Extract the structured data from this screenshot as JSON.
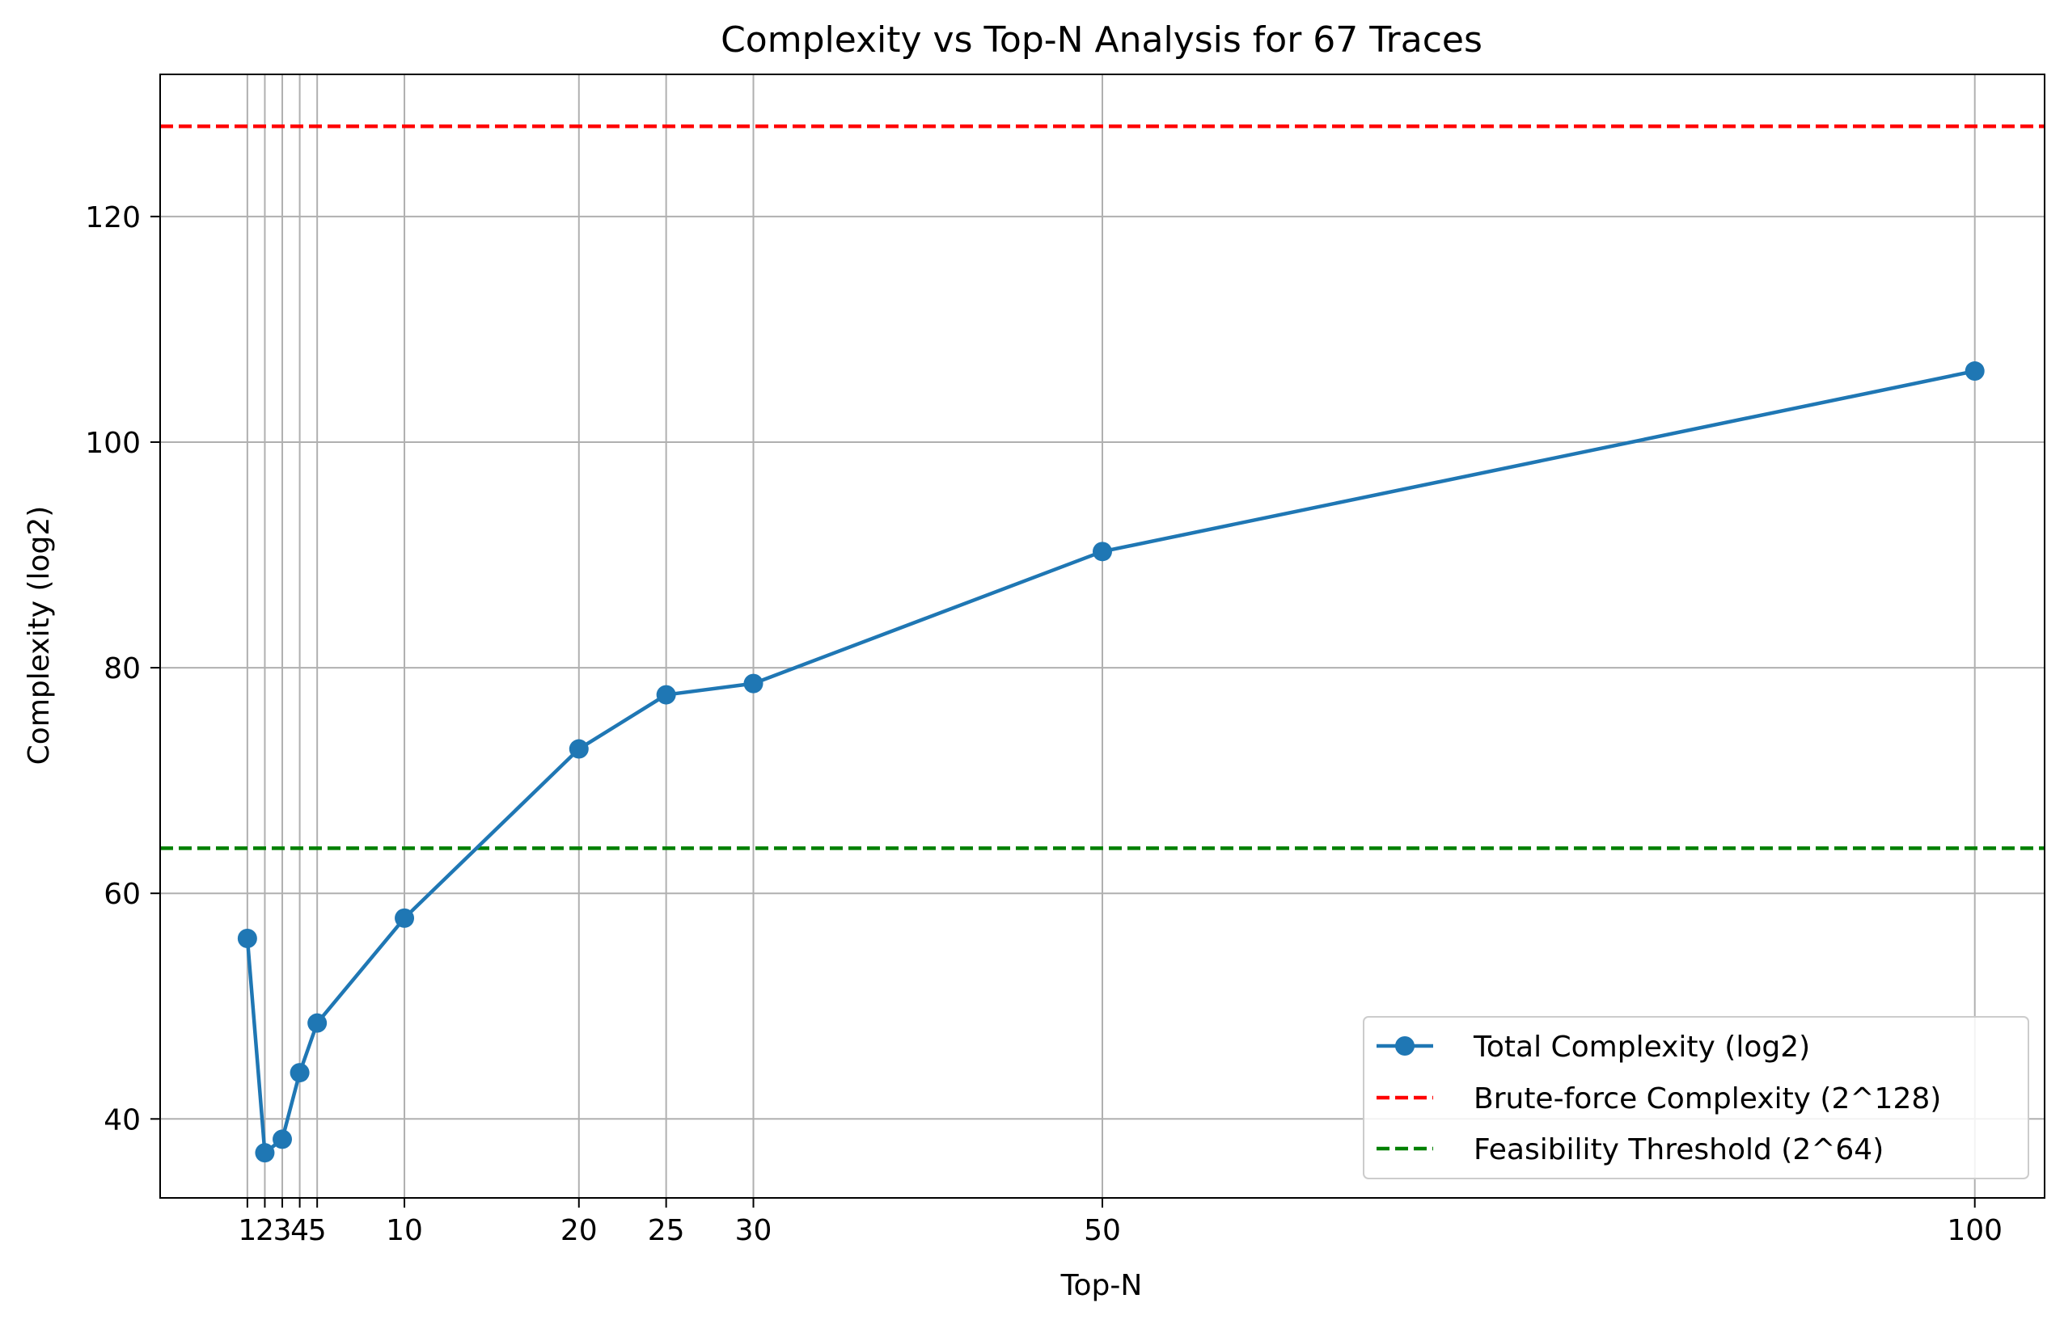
{
  "chart_data": {
    "type": "line",
    "title": "Complexity vs Top-N Analysis for 67 Traces",
    "xlabel": "Top-N",
    "ylabel": "Complexity (log2)",
    "x_ticks": [
      1,
      2,
      3,
      4,
      5,
      10,
      20,
      25,
      30,
      50,
      100
    ],
    "y_ticks": [
      40,
      60,
      80,
      100,
      120
    ],
    "xlim": [
      -4,
      104
    ],
    "ylim": [
      33,
      132.6
    ],
    "grid": true,
    "legend_position": "lower-right",
    "series": [
      {
        "name": "Total Complexity (log2)",
        "color": "#1f77b4",
        "style": "solid-with-markers",
        "x": [
          1,
          2,
          3,
          4,
          5,
          10,
          20,
          25,
          30,
          50,
          100
        ],
        "y": [
          56.0,
          37.0,
          38.2,
          44.1,
          48.5,
          57.8,
          72.8,
          77.6,
          78.6,
          90.3,
          106.3
        ]
      }
    ],
    "reference_lines": [
      {
        "name": "Brute-force Complexity (2^128)",
        "y": 128,
        "color": "#ff0000",
        "style": "dashed"
      },
      {
        "name": "Feasibility Threshold (2^64)",
        "y": 64,
        "color": "#008000",
        "style": "dashed"
      }
    ]
  }
}
